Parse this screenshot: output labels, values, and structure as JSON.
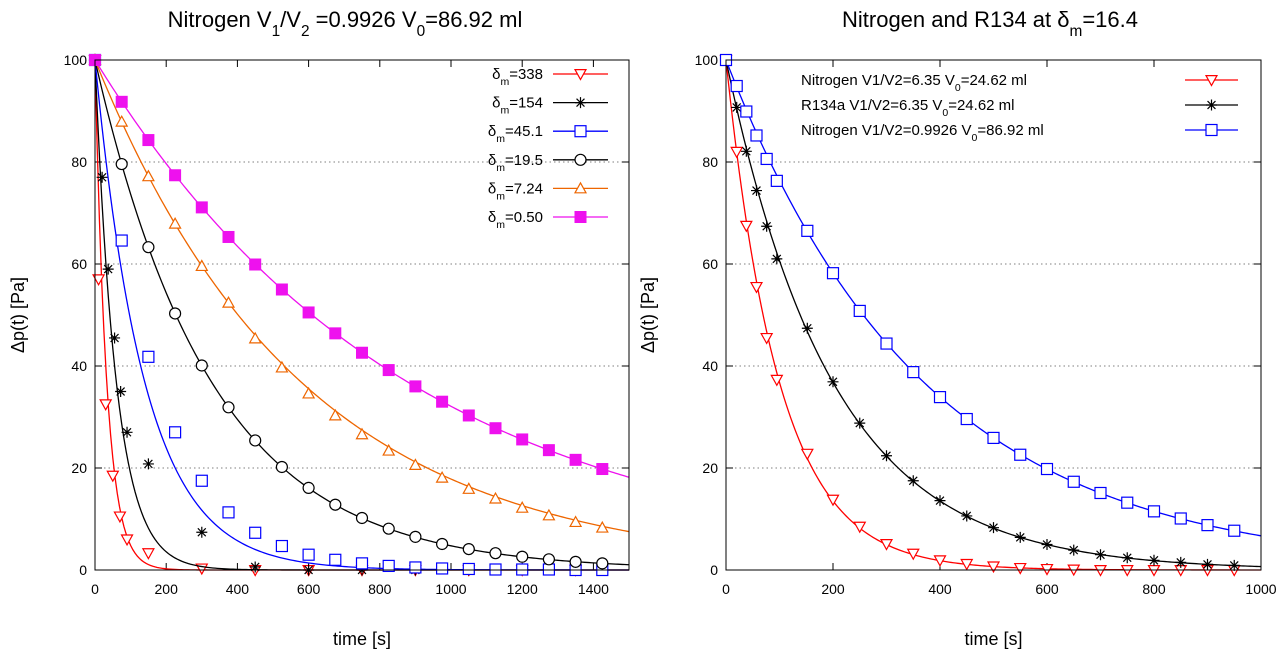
{
  "chart_data": [
    {
      "type": "line",
      "title": "Nitrogen V1/V2 =0.9926  V0=86.92  ml",
      "title_parts": [
        {
          "t": "Nitrogen V"
        },
        {
          "t": "1",
          "sub": true
        },
        {
          "t": "/V"
        },
        {
          "t": "2",
          "sub": true
        },
        {
          "t": " =0.9926  V"
        },
        {
          "t": "0",
          "sub": true
        },
        {
          "t": "=86.92  ml"
        }
      ],
      "xlabel": "time [s]",
      "ylabel": "Δp(t) [Pa]",
      "xlim": [
        0,
        1500
      ],
      "ylim": [
        0,
        100
      ],
      "xticks": [
        0,
        200,
        400,
        600,
        800,
        1000,
        1200,
        1400
      ],
      "yticks": [
        0,
        20,
        40,
        60,
        80,
        100
      ],
      "grid": "horizontal dotted",
      "legend": "top-right",
      "series": [
        {
          "name": "δm=338",
          "legend_parts": [
            {
              "t": "δ"
            },
            {
              "t": "m",
              "sub": true
            },
            {
              "t": "=338"
            }
          ],
          "color": "#ff0000",
          "marker": "triangle-down-open",
          "tau": 33,
          "x": [
            0,
            10,
            30,
            50,
            70,
            90,
            150,
            300,
            450,
            600,
            750,
            900,
            1050,
            1200,
            1350
          ],
          "y": [
            100,
            57,
            32.5,
            18.5,
            10.5,
            6,
            3.3,
            0.3,
            0,
            0,
            0,
            0,
            0,
            0,
            0
          ]
        },
        {
          "name": "δm=154",
          "legend_parts": [
            {
              "t": "δ"
            },
            {
              "t": "m",
              "sub": true
            },
            {
              "t": "=154"
            }
          ],
          "color": "#000000",
          "marker": "star",
          "tau": 60,
          "x": [
            0,
            20,
            37,
            55,
            72,
            90,
            150,
            300,
            450,
            600,
            750,
            900,
            1050,
            1200,
            1350
          ],
          "y": [
            100,
            77,
            59,
            45.5,
            35,
            27,
            20.8,
            7.4,
            0.6,
            0,
            0,
            0,
            0,
            0,
            0
          ]
        },
        {
          "name": "δm=45.1",
          "legend_parts": [
            {
              "t": "δ"
            },
            {
              "t": "m",
              "sub": true
            },
            {
              "t": "=45.1"
            }
          ],
          "color": "#0000ff",
          "marker": "square-open",
          "tau": 140,
          "x": [
            0,
            75,
            150,
            225,
            300,
            375,
            450,
            525,
            600,
            675,
            750,
            825,
            900,
            975,
            1050,
            1125,
            1200,
            1275,
            1350,
            1425
          ],
          "y": [
            100,
            64.6,
            41.8,
            27,
            17.5,
            11.3,
            7.3,
            4.7,
            3.0,
            2.0,
            1.3,
            0.8,
            0.5,
            0.3,
            0.2,
            0.1,
            0.1,
            0.1,
            0,
            0
          ]
        },
        {
          "name": "δm=19.5",
          "legend_parts": [
            {
              "t": "δ"
            },
            {
              "t": "m",
              "sub": true
            },
            {
              "t": "=19.5"
            }
          ],
          "color": "#000000",
          "marker": "circle-open",
          "tau": 328,
          "x": [
            0,
            75,
            150,
            225,
            300,
            375,
            450,
            525,
            600,
            675,
            750,
            825,
            900,
            975,
            1050,
            1125,
            1200,
            1275,
            1350,
            1425
          ],
          "y": [
            100,
            79.6,
            63.3,
            50.3,
            40.1,
            31.9,
            25.4,
            20.2,
            16.1,
            12.8,
            10.2,
            8.1,
            6.5,
            5.1,
            4.1,
            3.3,
            2.6,
            2.1,
            1.6,
            1.3
          ]
        },
        {
          "name": "δm=7.24",
          "legend_parts": [
            {
              "t": "δ"
            },
            {
              "t": "m",
              "sub": true
            },
            {
              "t": "=7.24"
            }
          ],
          "color": "#ee6600",
          "marker": "triangle-up-open",
          "tau": 580,
          "x": [
            0,
            75,
            150,
            225,
            300,
            375,
            450,
            525,
            600,
            675,
            750,
            825,
            900,
            975,
            1050,
            1125,
            1200,
            1275,
            1350,
            1425
          ],
          "y": [
            100,
            87.9,
            77.2,
            67.9,
            59.6,
            52.4,
            45.4,
            39.7,
            34.6,
            30.3,
            26.6,
            23.4,
            20.6,
            18.1,
            15.9,
            14.0,
            12.2,
            10.7,
            9.4,
            8.3
          ]
        },
        {
          "name": "δm=0.50",
          "legend_parts": [
            {
              "t": "δ"
            },
            {
              "t": "m",
              "sub": true
            },
            {
              "t": "=0.50"
            }
          ],
          "color": "#ee11ee",
          "marker": "square-filled",
          "tau": 880,
          "x": [
            0,
            75,
            150,
            225,
            300,
            375,
            450,
            525,
            600,
            675,
            750,
            825,
            900,
            975,
            1050,
            1125,
            1200,
            1275,
            1350,
            1425
          ],
          "y": [
            100,
            91.8,
            84.3,
            77.4,
            71.1,
            65.3,
            59.9,
            55.0,
            50.5,
            46.4,
            42.6,
            39.2,
            36.0,
            33.0,
            30.3,
            27.8,
            25.6,
            23.5,
            21.6,
            19.8
          ]
        }
      ]
    },
    {
      "type": "line",
      "title": "Nitrogen and R134 at δm=16.4",
      "title_parts": [
        {
          "t": "Nitrogen and R134 at δ"
        },
        {
          "t": "m",
          "sub": true
        },
        {
          "t": "=16.4"
        }
      ],
      "xlabel": "time [s]",
      "ylabel": "Δp(t) [Pa]",
      "xlim": [
        0,
        1000
      ],
      "ylim": [
        0,
        100
      ],
      "xticks": [
        0,
        200,
        400,
        600,
        800,
        1000
      ],
      "yticks": [
        0,
        20,
        40,
        60,
        80,
        100
      ],
      "grid": "horizontal dotted",
      "legend": "top-right",
      "series": [
        {
          "name": "Nitrogen V1/V2=6.35 V0=24.62  ml",
          "legend_parts": [
            {
              "t": "Nitrogen V1/V2=6.35 V"
            },
            {
              "t": "0",
              "sub": true
            },
            {
              "t": "=24.62  ml"
            }
          ],
          "color": "#ff0000",
          "marker": "triangle-down-open",
          "tau": 100,
          "x": [
            0,
            20,
            38,
            57,
            76,
            95,
            152,
            200,
            250,
            300,
            350,
            400,
            450,
            500,
            550,
            600,
            650,
            700,
            750,
            800,
            850,
            900,
            950
          ],
          "y": [
            100,
            82,
            67.5,
            55.5,
            45.5,
            37.3,
            22.8,
            13.8,
            8.5,
            5.1,
            3.2,
            1.9,
            1.2,
            0.7,
            0.4,
            0.2,
            0.1,
            0,
            0,
            0,
            0,
            0,
            0
          ]
        },
        {
          "name": "R134a V1/V2=6.35 V0=24.62  ml",
          "legend_parts": [
            {
              "t": "R134a V1/V2=6.35 V"
            },
            {
              "t": "0",
              "sub": true
            },
            {
              "t": "=24.62  ml"
            }
          ],
          "color": "#000000",
          "marker": "star",
          "tau": 200,
          "x": [
            0,
            20,
            38,
            57,
            76,
            95,
            152,
            200,
            250,
            300,
            350,
            400,
            450,
            500,
            550,
            600,
            650,
            700,
            750,
            800,
            850,
            900,
            950
          ],
          "y": [
            100,
            90.7,
            82.1,
            74.4,
            67.4,
            61,
            47.4,
            36.9,
            28.8,
            22.4,
            17.5,
            13.6,
            10.6,
            8.3,
            6.4,
            5.0,
            3.9,
            3.0,
            2.4,
            1.9,
            1.5,
            1.1,
            0.9
          ]
        },
        {
          "name": "Nitrogen V1/V2=0.9926 V0=86.92  ml",
          "legend_parts": [
            {
              "t": "Nitrogen V1/V2=0.9926 V"
            },
            {
              "t": "0",
              "sub": true
            },
            {
              "t": "=86.92  ml"
            }
          ],
          "color": "#0000ff",
          "marker": "square-open",
          "tau": 370,
          "x": [
            0,
            20,
            38,
            57,
            76,
            95,
            152,
            200,
            250,
            300,
            350,
            400,
            450,
            500,
            550,
            600,
            650,
            700,
            750,
            800,
            850,
            900,
            950
          ],
          "y": [
            100,
            94.9,
            89.9,
            85.2,
            80.6,
            76.3,
            66.5,
            58.2,
            50.8,
            44.4,
            38.8,
            33.9,
            29.6,
            25.9,
            22.6,
            19.8,
            17.3,
            15.1,
            13.2,
            11.5,
            10.1,
            8.8,
            7.7
          ]
        }
      ]
    }
  ]
}
